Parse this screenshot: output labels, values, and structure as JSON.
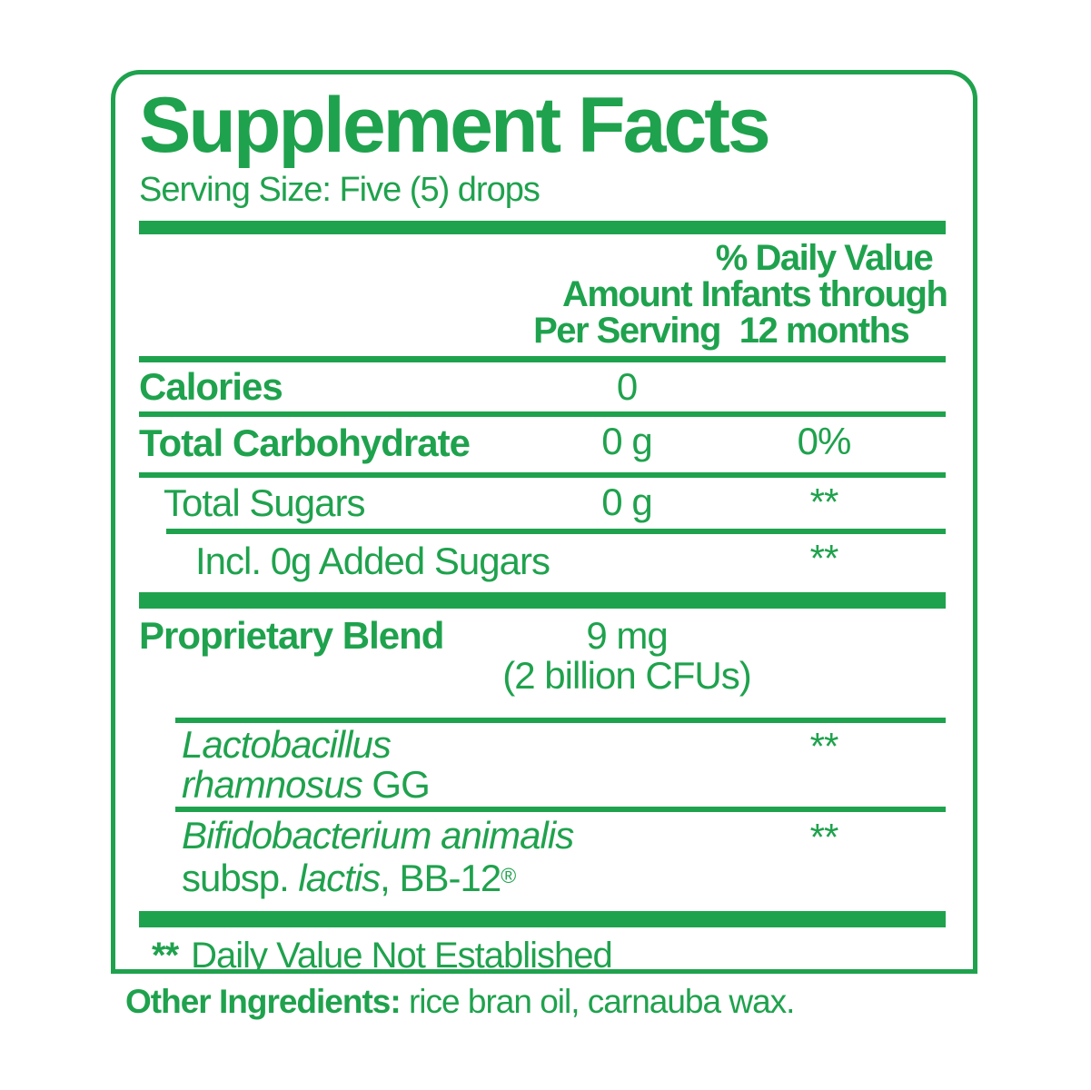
{
  "colors": {
    "green": "#1fa24d",
    "background": "#ffffff"
  },
  "label": {
    "title": "Supplement Facts",
    "serving_size": "Serving Size: Five (5) drops",
    "header": {
      "amount_lines": [
        "Amount",
        "Per Serving"
      ],
      "dv_lines": [
        "% Daily Value",
        "Infants through",
        "12 months"
      ]
    },
    "rows": [
      {
        "id": "calories",
        "indent": 0,
        "lines": [
          [
            {
              "t": "Calories",
              "b": true
            }
          ]
        ],
        "amount": [
          "0"
        ],
        "dv": "",
        "after": "thin"
      },
      {
        "id": "total-carbohydrate",
        "indent": 0,
        "lines": [
          [
            {
              "t": "Total Carbohydrate",
              "b": true
            }
          ]
        ],
        "amount": [
          "0 g"
        ],
        "dv": "0%",
        "after": "thin"
      },
      {
        "id": "total-sugars",
        "indent": 27,
        "lines": [
          [
            {
              "t": "Total Sugars"
            }
          ]
        ],
        "amount": [
          "0 g"
        ],
        "dv": "**",
        "after": "thin-indent"
      },
      {
        "id": "added-sugars",
        "indent": 62,
        "lines": [
          [
            {
              "t": "Incl. 0g Added Sugars"
            }
          ]
        ],
        "amount": [],
        "dv": "**",
        "after": "bar"
      },
      {
        "id": "proprietary-blend",
        "indent": 0,
        "lines": [
          [
            {
              "t": "Proprietary Blend",
              "b": true
            }
          ]
        ],
        "amount": [
          "9 mg",
          "(2 billion CFUs)"
        ],
        "dv": "",
        "after": "thin-indent2"
      },
      {
        "id": "lactobacillus",
        "indent": 47,
        "lines": [
          [
            {
              "t": "Lactobacillus",
              "i": true
            }
          ],
          [
            {
              "t": "rhamnosus",
              "i": true
            },
            {
              "t": " GG"
            }
          ]
        ],
        "amount": [],
        "dv": "**",
        "after": "thin-indent2"
      },
      {
        "id": "bifidobacterium",
        "indent": 47,
        "lines": [
          [
            {
              "t": "Bifidobacterium animalis",
              "i": true
            }
          ],
          [
            {
              "t": "subsp. "
            },
            {
              "t": "lactis",
              "i": true
            },
            {
              "t": ", BB-12"
            },
            {
              "t": "®",
              "sup": true
            }
          ]
        ],
        "amount": [],
        "dv": "**",
        "after": "bar"
      }
    ],
    "footnote": {
      "mark": "**",
      "text": "Daily Value Not Established"
    },
    "other_ingredients": {
      "label": "Other Ingredients:",
      "text": " rice bran oil, carnauba wax."
    }
  }
}
